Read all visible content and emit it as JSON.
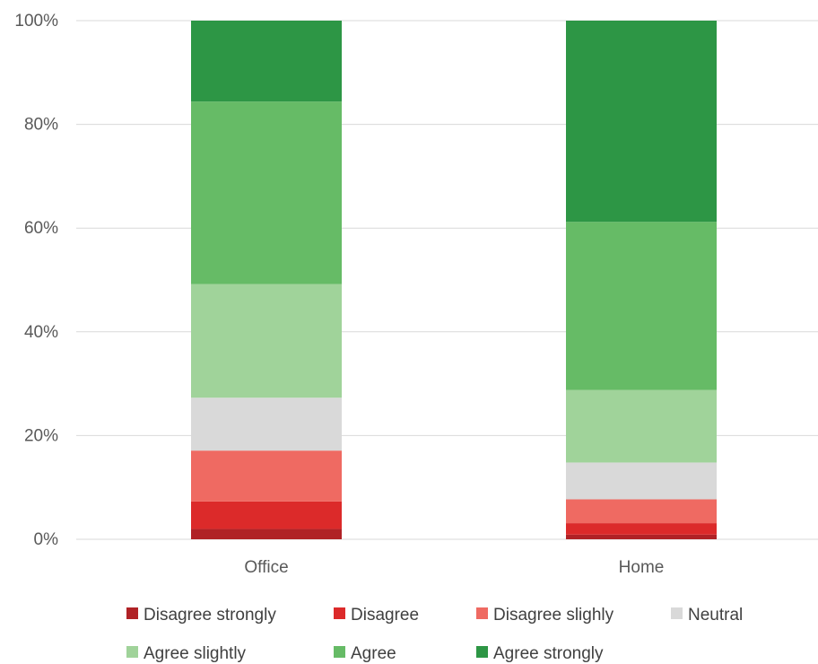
{
  "chart_data": {
    "type": "bar",
    "stacked": true,
    "percent": true,
    "categories": [
      "Office",
      "Home"
    ],
    "series": [
      {
        "name": "Disagree strongly",
        "color": "#b02226",
        "values": [
          2.0,
          0.9
        ]
      },
      {
        "name": "Disagree",
        "color": "#dc2a2a",
        "values": [
          5.3,
          2.2
        ]
      },
      {
        "name": "Disagree slighly",
        "color": "#ef6a62",
        "values": [
          9.8,
          4.6
        ]
      },
      {
        "name": "Neutral",
        "color": "#d9d9d9",
        "values": [
          10.2,
          7.1
        ]
      },
      {
        "name": "Agree slightly",
        "color": "#a0d39a",
        "values": [
          21.9,
          14.0
        ]
      },
      {
        "name": "Agree",
        "color": "#66bb66",
        "values": [
          35.2,
          32.4
        ]
      },
      {
        "name": "Agree strongly",
        "color": "#2d9645",
        "values": [
          15.6,
          38.8
        ]
      }
    ],
    "y_ticks": [
      "0%",
      "20%",
      "40%",
      "60%",
      "80%",
      "100%"
    ],
    "ylim": [
      0,
      100
    ],
    "grid": true,
    "legend_position": "bottom",
    "title": "",
    "xlabel": "",
    "ylabel": ""
  }
}
